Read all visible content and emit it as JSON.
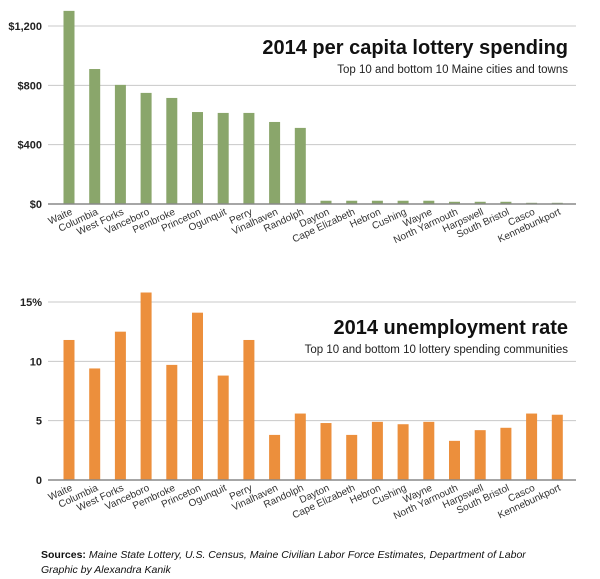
{
  "chart_data": [
    {
      "type": "bar",
      "title": "2014 per capita lottery spending",
      "subtitle": "Top 10 and bottom 10 Maine cities and towns",
      "xlabel": "",
      "ylabel": "",
      "ylim": [
        0,
        1300
      ],
      "yticks": [
        0,
        400,
        800,
        1200
      ],
      "ytick_labels": [
        "$0",
        "$400",
        "$800",
        "$1,200"
      ],
      "grid": true,
      "color": "#8aa66b",
      "categories": [
        "Waite",
        "Columbia",
        "West Forks",
        "Vanceboro",
        "Pembroke",
        "Princeton",
        "Ogunquit",
        "Perry",
        "Vinalhaven",
        "Randolph",
        "Dayton",
        "Cape Elizabeth",
        "Hebron",
        "Cushing",
        "Wayne",
        "North Yarmouth",
        "Harpswell",
        "South Bristol",
        "Casco",
        "Kennebunkport"
      ],
      "values": [
        1302,
        910,
        803,
        749,
        715,
        620,
        614,
        614,
        553,
        513,
        22,
        22,
        22,
        22,
        22,
        15,
        15,
        15,
        8,
        8
      ]
    },
    {
      "type": "bar",
      "title": "2014 unemployment rate",
      "subtitle": "Top 10 and bottom 10 lottery spending communities",
      "xlabel": "",
      "ylabel": "",
      "ylim": [
        0,
        15.8
      ],
      "yticks": [
        0,
        5,
        10,
        15
      ],
      "ytick_labels": [
        "0",
        "5",
        "10",
        "15%"
      ],
      "grid": true,
      "color": "#ec8f3c",
      "categories": [
        "Waite",
        "Columbia",
        "West Forks",
        "Vanceboro",
        "Pembroke",
        "Princeton",
        "Ogunquit",
        "Perry",
        "Vinalhaven",
        "Randolph",
        "Dayton",
        "Cape Elizabeth",
        "Hebron",
        "Cushing",
        "Wayne",
        "North Yarmouth",
        "Harpswell",
        "South Bristol",
        "Casco",
        "Kennebunkport"
      ],
      "values": [
        11.8,
        9.4,
        12.5,
        15.8,
        9.7,
        14.1,
        8.8,
        11.8,
        3.8,
        5.6,
        4.8,
        3.8,
        4.9,
        4.7,
        4.9,
        3.3,
        4.2,
        4.4,
        5.6,
        5.5
      ]
    }
  ],
  "footer": {
    "sources_label": "Sources:",
    "sources_text": "Maine State Lottery, U.S. Census, Maine Civilian Labor Force Estimates, Department of Labor",
    "credit": "Graphic by Alexandra Kanik"
  }
}
